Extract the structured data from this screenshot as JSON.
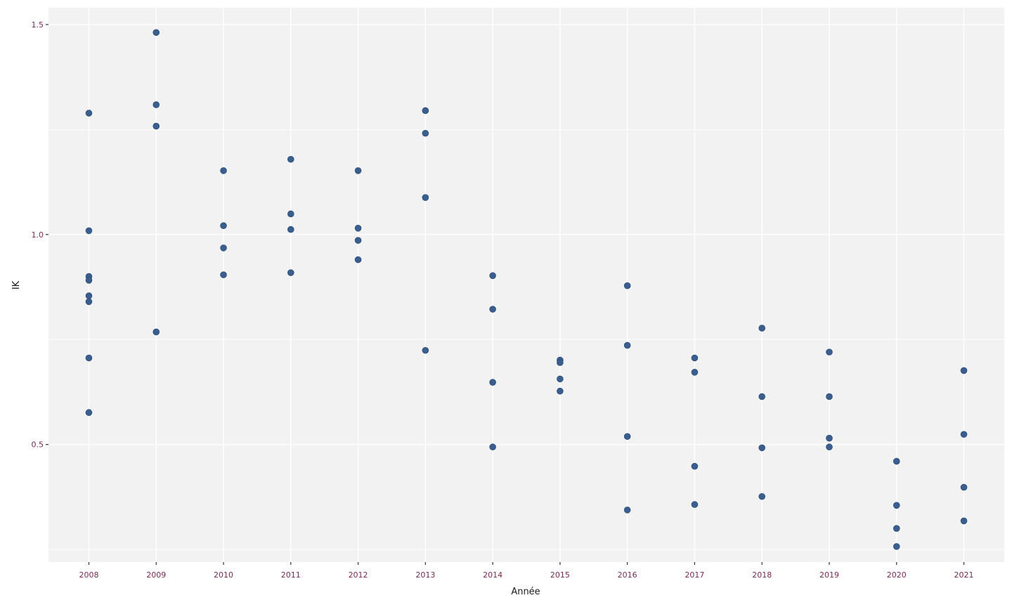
{
  "chart_data": {
    "type": "scatter",
    "title": "",
    "xlabel": "Année",
    "ylabel": "IK",
    "x_ticks": [
      "2008",
      "2009",
      "2010",
      "2011",
      "2012",
      "2013",
      "2014",
      "2015",
      "2016",
      "2017",
      "2018",
      "2019",
      "2020",
      "2021"
    ],
    "y_ticks": [
      "0.5",
      "1.0",
      "1.5"
    ],
    "y_tick_values": [
      0.5,
      1.0,
      1.5
    ],
    "ylim": [
      0.22,
      1.54
    ],
    "xlim": [
      2007.4,
      2021.6
    ],
    "grid": true,
    "colors": {
      "panel_background": "#f2f2f2",
      "grid_major": "#ffffff",
      "grid_minor": "#ffffff",
      "point": "#3a5f8f",
      "x_tick_label": "#7a2a55",
      "y_tick_label": "#7a2a55",
      "axis_title": "#1a1a1a"
    },
    "points": [
      {
        "x": 2008,
        "y": 1.289
      },
      {
        "x": 2008,
        "y": 1.009
      },
      {
        "x": 2008,
        "y": 0.9
      },
      {
        "x": 2008,
        "y": 0.891
      },
      {
        "x": 2008,
        "y": 0.854
      },
      {
        "x": 2008,
        "y": 0.84
      },
      {
        "x": 2008,
        "y": 0.706
      },
      {
        "x": 2008,
        "y": 0.576
      },
      {
        "x": 2009,
        "y": 1.481
      },
      {
        "x": 2009,
        "y": 1.309
      },
      {
        "x": 2009,
        "y": 1.258
      },
      {
        "x": 2009,
        "y": 0.768
      },
      {
        "x": 2010,
        "y": 1.152
      },
      {
        "x": 2010,
        "y": 1.021
      },
      {
        "x": 2010,
        "y": 0.968
      },
      {
        "x": 2010,
        "y": 0.904
      },
      {
        "x": 2011,
        "y": 1.179
      },
      {
        "x": 2011,
        "y": 1.049
      },
      {
        "x": 2011,
        "y": 1.012
      },
      {
        "x": 2011,
        "y": 0.909
      },
      {
        "x": 2012,
        "y": 1.152
      },
      {
        "x": 2012,
        "y": 1.015
      },
      {
        "x": 2012,
        "y": 0.986
      },
      {
        "x": 2012,
        "y": 0.94
      },
      {
        "x": 2013,
        "y": 1.295
      },
      {
        "x": 2013,
        "y": 1.241
      },
      {
        "x": 2013,
        "y": 1.088
      },
      {
        "x": 2013,
        "y": 0.724
      },
      {
        "x": 2014,
        "y": 0.902
      },
      {
        "x": 2014,
        "y": 0.822
      },
      {
        "x": 2014,
        "y": 0.648
      },
      {
        "x": 2014,
        "y": 0.494
      },
      {
        "x": 2015,
        "y": 0.701
      },
      {
        "x": 2015,
        "y": 0.695
      },
      {
        "x": 2015,
        "y": 0.656
      },
      {
        "x": 2015,
        "y": 0.627
      },
      {
        "x": 2016,
        "y": 0.878
      },
      {
        "x": 2016,
        "y": 0.736
      },
      {
        "x": 2016,
        "y": 0.519
      },
      {
        "x": 2016,
        "y": 0.344
      },
      {
        "x": 2017,
        "y": 0.706
      },
      {
        "x": 2017,
        "y": 0.672
      },
      {
        "x": 2017,
        "y": 0.448
      },
      {
        "x": 2017,
        "y": 0.357
      },
      {
        "x": 2018,
        "y": 0.777
      },
      {
        "x": 2018,
        "y": 0.614
      },
      {
        "x": 2018,
        "y": 0.492
      },
      {
        "x": 2018,
        "y": 0.376
      },
      {
        "x": 2019,
        "y": 0.72
      },
      {
        "x": 2019,
        "y": 0.614
      },
      {
        "x": 2019,
        "y": 0.515
      },
      {
        "x": 2019,
        "y": 0.494
      },
      {
        "x": 2020,
        "y": 0.46
      },
      {
        "x": 2020,
        "y": 0.355
      },
      {
        "x": 2020,
        "y": 0.3
      },
      {
        "x": 2020,
        "y": 0.257
      },
      {
        "x": 2021,
        "y": 0.676
      },
      {
        "x": 2021,
        "y": 0.524
      },
      {
        "x": 2021,
        "y": 0.398
      },
      {
        "x": 2021,
        "y": 0.318
      }
    ]
  }
}
